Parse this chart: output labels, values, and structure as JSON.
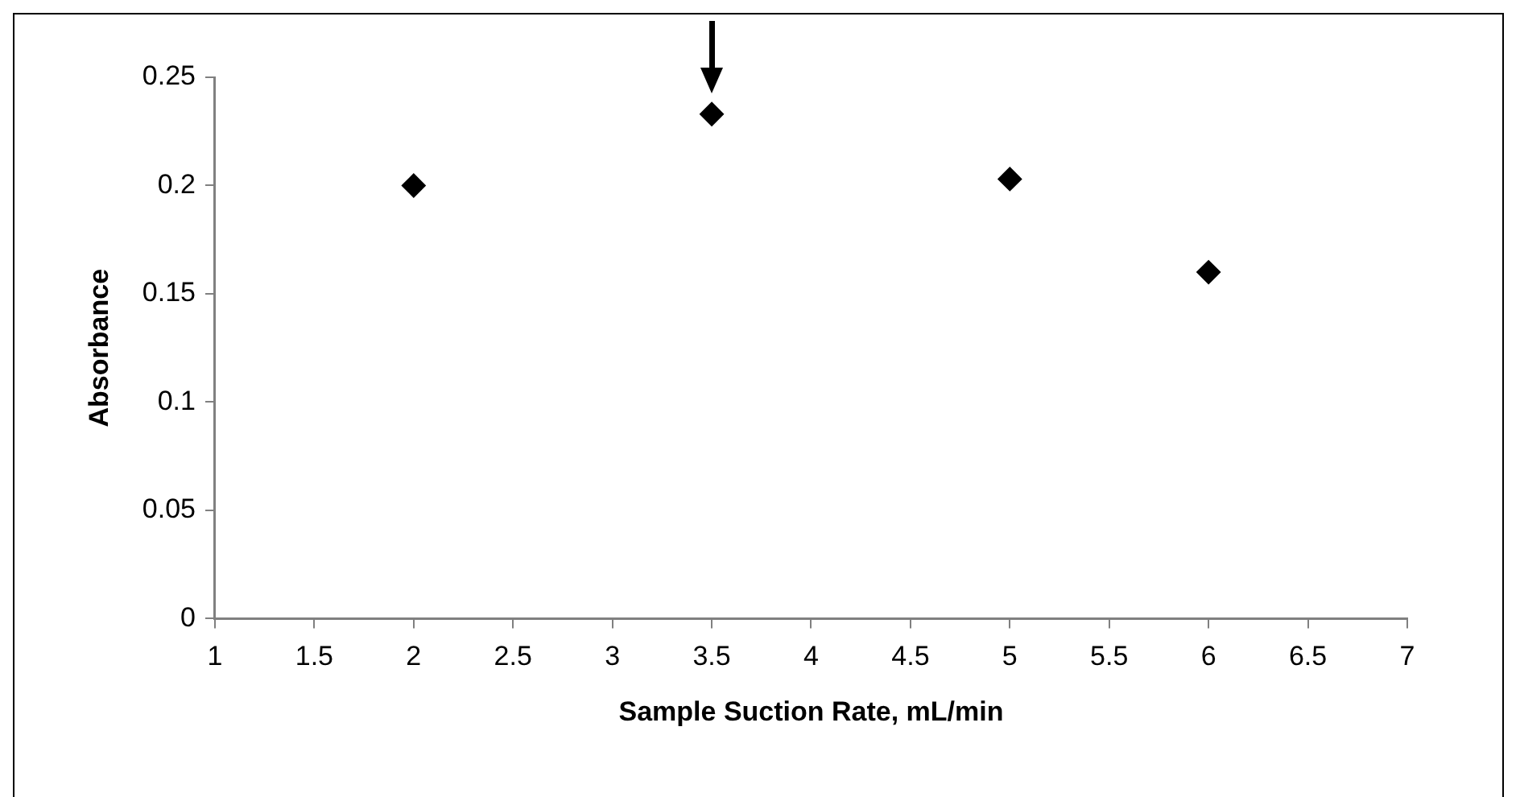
{
  "chart_data": {
    "type": "scatter",
    "xlabel": "Sample Suction Rate, mL/min",
    "ylabel": "Absorbance",
    "x": [
      2,
      3.5,
      5,
      6
    ],
    "series": [
      {
        "color": "#000000",
        "values": [
          0.2,
          0.233,
          0.203,
          0.16
        ]
      }
    ],
    "xlim": [
      1,
      7
    ],
    "xticks": [
      1,
      1.5,
      2,
      2.5,
      3,
      3.5,
      4,
      4.5,
      5,
      5.5,
      6,
      6.5,
      7
    ],
    "ylim": [
      0,
      0.25
    ],
    "yticks": [
      0,
      0.05,
      0.1,
      0.15,
      0.2,
      0.25
    ],
    "grid": false,
    "legend": false,
    "marker": "diamond"
  }
}
